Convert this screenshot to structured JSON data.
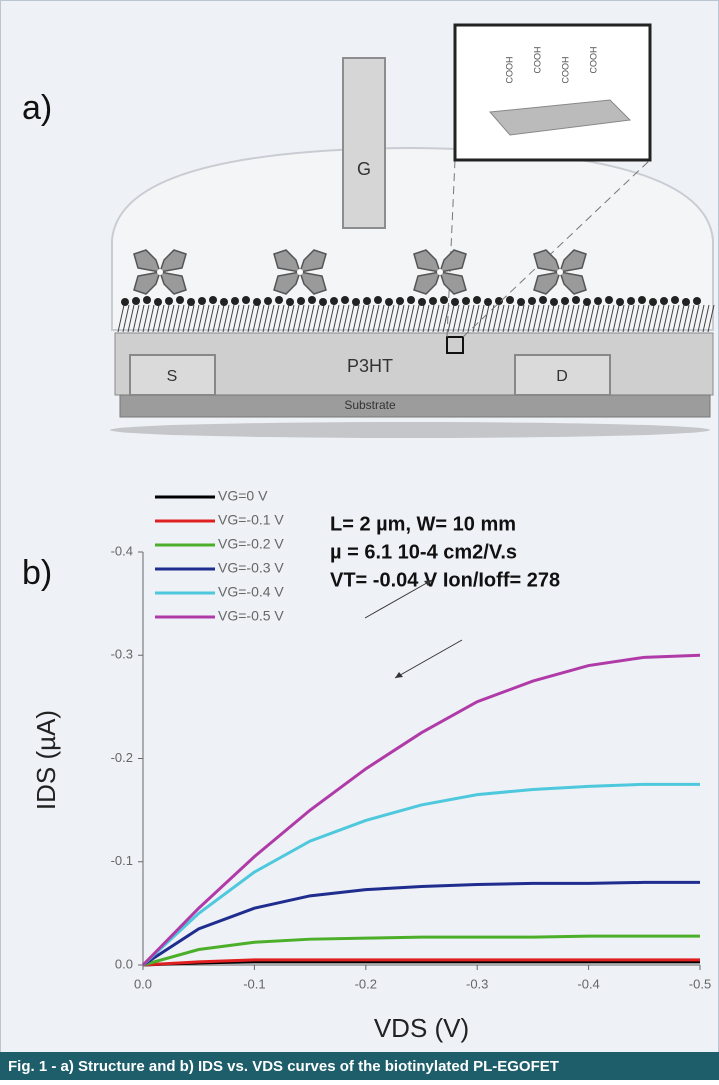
{
  "diagram": {
    "label": "a)",
    "gate": "G",
    "source": "S",
    "semiconductor": "P3HT",
    "drain": "D",
    "substrate": "Substrate",
    "inset_labels": [
      "COOH",
      "COOH",
      "COOH",
      "COOH"
    ]
  },
  "chart_data": {
    "type": "line",
    "panel_label": "b)",
    "xlabel": "VDS (V)",
    "ylabel": "IDS (µA)",
    "annotations": [
      "L= 2 µm, W= 10 mm",
      "µ = 6.1 10-4 cm2/V.s",
      "VT= -0.04 V Ion/Ioff= 278"
    ],
    "x": [
      0,
      -0.05,
      -0.1,
      -0.15,
      -0.2,
      -0.25,
      -0.3,
      -0.35,
      -0.4,
      -0.45,
      -0.5
    ],
    "series": [
      {
        "name": "VG=0 V",
        "color": "#000000",
        "values": [
          0,
          -0.002,
          -0.003,
          -0.003,
          -0.003,
          -0.003,
          -0.003,
          -0.003,
          -0.003,
          -0.003,
          -0.003
        ]
      },
      {
        "name": "VG=-0.1 V",
        "color": "#e02020",
        "values": [
          0,
          -0.003,
          -0.005,
          -0.005,
          -0.005,
          -0.005,
          -0.005,
          -0.005,
          -0.005,
          -0.005,
          -0.005
        ]
      },
      {
        "name": "VG=-0.2 V",
        "color": "#4caf2a",
        "values": [
          0,
          -0.015,
          -0.022,
          -0.025,
          -0.026,
          -0.027,
          -0.027,
          -0.027,
          -0.028,
          -0.028,
          -0.028
        ]
      },
      {
        "name": "VG=-0.3 V",
        "color": "#1f2d8f",
        "values": [
          0,
          -0.035,
          -0.055,
          -0.067,
          -0.073,
          -0.076,
          -0.078,
          -0.079,
          -0.079,
          -0.08,
          -0.08
        ]
      },
      {
        "name": "VG=-0.4 V",
        "color": "#4ec8dc",
        "values": [
          0,
          -0.05,
          -0.09,
          -0.12,
          -0.14,
          -0.155,
          -0.165,
          -0.17,
          -0.173,
          -0.175,
          -0.175
        ]
      },
      {
        "name": "VG=-0.5 V",
        "color": "#b03aa8",
        "values": [
          0,
          -0.055,
          -0.105,
          -0.15,
          -0.19,
          -0.225,
          -0.255,
          -0.275,
          -0.29,
          -0.298,
          -0.3
        ]
      }
    ],
    "xlim": [
      0,
      -0.5
    ],
    "xticks": [
      {
        "value": 0,
        "label": "0.0"
      },
      -0.1,
      -0.2,
      -0.3,
      -0.4,
      -0.5
    ],
    "ylim": [
      0,
      -0.4
    ],
    "yticks": [
      {
        "value": 0,
        "label": "0.0"
      },
      -0.1,
      -0.2,
      -0.3,
      -0.4
    ]
  },
  "caption": "Fig. 1 - a) Structure and b) IDS vs. VDS curves of the biotinylated PL-EGOFET"
}
